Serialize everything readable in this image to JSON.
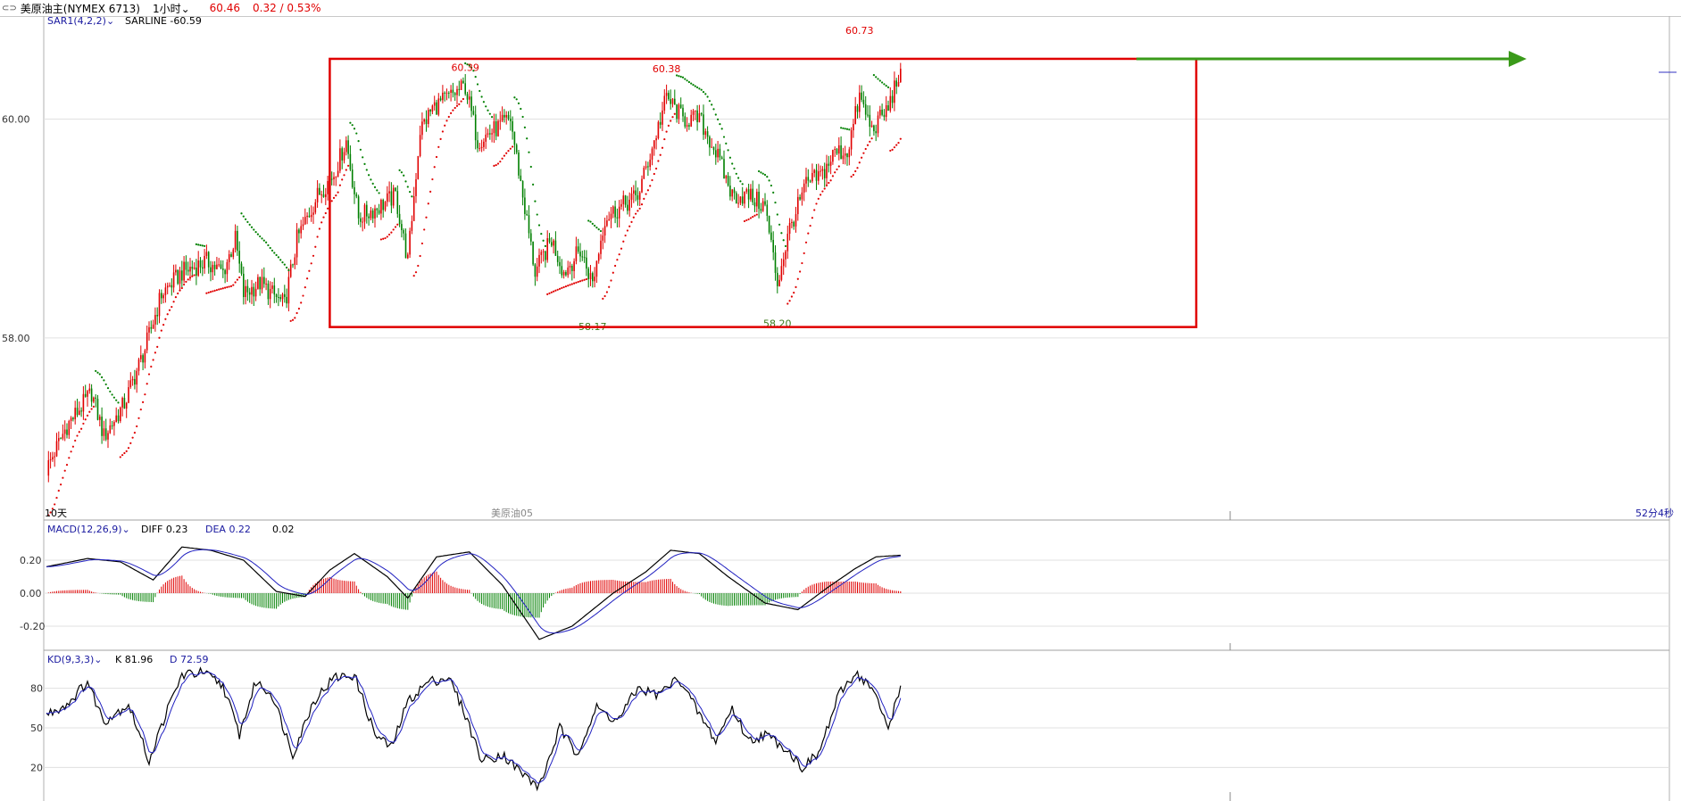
{
  "topbar": {
    "icon": "link-icon",
    "instrument": "美原油主(NYMEX 6713)",
    "period": "1小时",
    "price": "60.46",
    "change": "0.32 / 0.53%"
  },
  "main_panel": {
    "indicator_label": "SAR1(4,2,2)",
    "sarline_label": "SARLINE -60.59",
    "y_ticks": [
      "60.00",
      "58.00"
    ],
    "x_left_label": "10天",
    "x_mid_label": "美原油05",
    "x_right_label": "52分4秒",
    "annotations": [
      "60.39",
      "60.38",
      "60.73",
      "58.17",
      "58.20"
    ]
  },
  "macd_panel": {
    "indicator_label": "MACD(12,26,9)",
    "diff_label": "DIFF 0.23",
    "dea_label": "DEA 0.22",
    "macd_value": "0.02",
    "y_ticks": [
      "0.20",
      "0.00",
      "-0.20"
    ]
  },
  "kd_panel": {
    "indicator_label": "KD(9,3,3)",
    "k_label": "K 81.96",
    "d_label": "D 72.59",
    "y_ticks": [
      "80",
      "50",
      "20"
    ]
  },
  "colors": {
    "up": "#e00000",
    "down": "#008000",
    "box": "#e00000",
    "arrow": "#3a9a1a",
    "dea_line": "#2020c0",
    "label_blue": "#1a1aa0"
  },
  "chart_data": {
    "type": "candlestick",
    "instrument": "美原油主(NYMEX 6713)",
    "timeframe": "1小时",
    "ylim": [
      56.5,
      60.9
    ],
    "y_ticks": [
      58.0,
      60.0
    ],
    "anchors": [
      {
        "i": 0,
        "c": 56.8
      },
      {
        "i": 10,
        "c": 57.2
      },
      {
        "i": 22,
        "c": 57.5
      },
      {
        "i": 28,
        "c": 57.1
      },
      {
        "i": 38,
        "c": 57.4
      },
      {
        "i": 48,
        "c": 57.9
      },
      {
        "i": 56,
        "c": 58.4
      },
      {
        "i": 66,
        "c": 58.6
      },
      {
        "i": 78,
        "c": 58.7
      },
      {
        "i": 86,
        "c": 58.6
      },
      {
        "i": 92,
        "c": 58.9
      },
      {
        "i": 96,
        "c": 58.4
      },
      {
        "i": 104,
        "c": 58.5
      },
      {
        "i": 116,
        "c": 58.3
      },
      {
        "i": 122,
        "c": 58.9
      },
      {
        "i": 132,
        "c": 59.3
      },
      {
        "i": 140,
        "c": 59.5
      },
      {
        "i": 146,
        "c": 59.8
      },
      {
        "i": 152,
        "c": 59.1
      },
      {
        "i": 162,
        "c": 59.2
      },
      {
        "i": 170,
        "c": 59.3
      },
      {
        "i": 176,
        "c": 58.7
      },
      {
        "i": 182,
        "c": 59.9
      },
      {
        "i": 188,
        "c": 60.1
      },
      {
        "i": 196,
        "c": 60.2
      },
      {
        "i": 204,
        "c": 60.3
      },
      {
        "i": 210,
        "c": 59.8
      },
      {
        "i": 218,
        "c": 59.9
      },
      {
        "i": 226,
        "c": 60.0
      },
      {
        "i": 232,
        "c": 59.3
      },
      {
        "i": 238,
        "c": 58.6
      },
      {
        "i": 246,
        "c": 58.9
      },
      {
        "i": 252,
        "c": 58.6
      },
      {
        "i": 260,
        "c": 58.8
      },
      {
        "i": 266,
        "c": 58.5
      },
      {
        "i": 272,
        "c": 59.1
      },
      {
        "i": 280,
        "c": 59.2
      },
      {
        "i": 288,
        "c": 59.3
      },
      {
        "i": 296,
        "c": 59.8
      },
      {
        "i": 302,
        "c": 60.2
      },
      {
        "i": 310,
        "c": 60.0
      },
      {
        "i": 318,
        "c": 60.0
      },
      {
        "i": 326,
        "c": 59.7
      },
      {
        "i": 334,
        "c": 59.3
      },
      {
        "i": 342,
        "c": 59.3
      },
      {
        "i": 350,
        "c": 59.2
      },
      {
        "i": 356,
        "c": 58.5
      },
      {
        "i": 362,
        "c": 59.0
      },
      {
        "i": 370,
        "c": 59.4
      },
      {
        "i": 378,
        "c": 59.5
      },
      {
        "i": 384,
        "c": 59.7
      },
      {
        "i": 390,
        "c": 59.7
      },
      {
        "i": 396,
        "c": 60.2
      },
      {
        "i": 402,
        "c": 59.9
      },
      {
        "i": 410,
        "c": 60.1
      },
      {
        "i": 416,
        "c": 60.46
      }
    ],
    "annotations": [
      {
        "label": "60.39",
        "value": 60.39,
        "kind": "high"
      },
      {
        "label": "60.38",
        "value": 60.38,
        "kind": "high"
      },
      {
        "label": "60.73",
        "value": 60.73,
        "kind": "high"
      },
      {
        "label": "58.17",
        "value": 58.17,
        "kind": "low"
      },
      {
        "label": "58.20",
        "value": 58.2,
        "kind": "low"
      }
    ],
    "range_box": {
      "top": 60.55,
      "bottom": 58.1
    },
    "resistance_arrow": {
      "value": 60.55
    },
    "macd": {
      "diff": 0.23,
      "dea": 0.22,
      "macd": 0.02,
      "ylim": [
        -0.3,
        0.33
      ],
      "anchors": [
        {
          "i": 0,
          "v": 0.16
        },
        {
          "i": 20,
          "v": 0.21
        },
        {
          "i": 36,
          "v": 0.19
        },
        {
          "i": 52,
          "v": 0.08
        },
        {
          "i": 66,
          "v": 0.28
        },
        {
          "i": 80,
          "v": 0.26
        },
        {
          "i": 96,
          "v": 0.2
        },
        {
          "i": 112,
          "v": 0.01
        },
        {
          "i": 126,
          "v": -0.02
        },
        {
          "i": 138,
          "v": 0.14
        },
        {
          "i": 150,
          "v": 0.24
        },
        {
          "i": 166,
          "v": 0.1
        },
        {
          "i": 176,
          "v": -0.03
        },
        {
          "i": 190,
          "v": 0.22
        },
        {
          "i": 206,
          "v": 0.25
        },
        {
          "i": 222,
          "v": 0.05
        },
        {
          "i": 240,
          "v": -0.28
        },
        {
          "i": 256,
          "v": -0.2
        },
        {
          "i": 276,
          "v": 0.0
        },
        {
          "i": 292,
          "v": 0.13
        },
        {
          "i": 304,
          "v": 0.26
        },
        {
          "i": 318,
          "v": 0.24
        },
        {
          "i": 332,
          "v": 0.1
        },
        {
          "i": 350,
          "v": -0.06
        },
        {
          "i": 366,
          "v": -0.1
        },
        {
          "i": 380,
          "v": 0.03
        },
        {
          "i": 394,
          "v": 0.15
        },
        {
          "i": 404,
          "v": 0.22
        },
        {
          "i": 416,
          "v": 0.23
        }
      ]
    },
    "kd": {
      "k": 81.96,
      "d": 72.59,
      "ylim": [
        0,
        100
      ],
      "anchors": [
        {
          "i": 0,
          "v": 60
        },
        {
          "i": 10,
          "v": 68
        },
        {
          "i": 20,
          "v": 85
        },
        {
          "i": 28,
          "v": 55
        },
        {
          "i": 40,
          "v": 68
        },
        {
          "i": 50,
          "v": 25
        },
        {
          "i": 58,
          "v": 60
        },
        {
          "i": 66,
          "v": 90
        },
        {
          "i": 76,
          "v": 92
        },
        {
          "i": 86,
          "v": 82
        },
        {
          "i": 94,
          "v": 45
        },
        {
          "i": 102,
          "v": 85
        },
        {
          "i": 110,
          "v": 75
        },
        {
          "i": 120,
          "v": 30
        },
        {
          "i": 130,
          "v": 70
        },
        {
          "i": 140,
          "v": 88
        },
        {
          "i": 150,
          "v": 90
        },
        {
          "i": 160,
          "v": 45
        },
        {
          "i": 168,
          "v": 35
        },
        {
          "i": 176,
          "v": 70
        },
        {
          "i": 186,
          "v": 85
        },
        {
          "i": 196,
          "v": 88
        },
        {
          "i": 204,
          "v": 60
        },
        {
          "i": 212,
          "v": 25
        },
        {
          "i": 222,
          "v": 30
        },
        {
          "i": 232,
          "v": 15
        },
        {
          "i": 240,
          "v": 5
        },
        {
          "i": 250,
          "v": 50
        },
        {
          "i": 258,
          "v": 30
        },
        {
          "i": 268,
          "v": 65
        },
        {
          "i": 278,
          "v": 55
        },
        {
          "i": 288,
          "v": 80
        },
        {
          "i": 298,
          "v": 75
        },
        {
          "i": 308,
          "v": 88
        },
        {
          "i": 318,
          "v": 60
        },
        {
          "i": 326,
          "v": 40
        },
        {
          "i": 334,
          "v": 65
        },
        {
          "i": 342,
          "v": 40
        },
        {
          "i": 350,
          "v": 45
        },
        {
          "i": 360,
          "v": 35
        },
        {
          "i": 368,
          "v": 20
        },
        {
          "i": 376,
          "v": 30
        },
        {
          "i": 386,
          "v": 75
        },
        {
          "i": 394,
          "v": 92
        },
        {
          "i": 402,
          "v": 80
        },
        {
          "i": 410,
          "v": 50
        },
        {
          "i": 416,
          "v": 81.96
        }
      ]
    }
  }
}
